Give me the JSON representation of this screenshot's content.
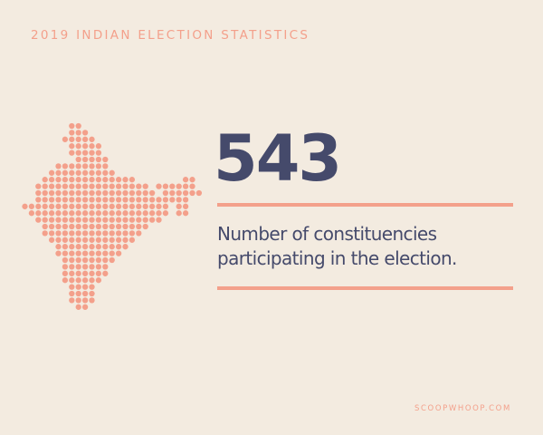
{
  "header": {
    "title": "2019 INDIAN ELECTION STATISTICS"
  },
  "stat": {
    "value": "543",
    "caption_line1": "Number of constituencies",
    "caption_line2": "participating in the election."
  },
  "footer": {
    "source": "SCOOPWHOOP.COM"
  },
  "theme": {
    "background": "#f3ebe0",
    "accent": "#f3a08b",
    "text": "#454a6b"
  },
  "map": {
    "icon": "india-map-dot-icon"
  }
}
